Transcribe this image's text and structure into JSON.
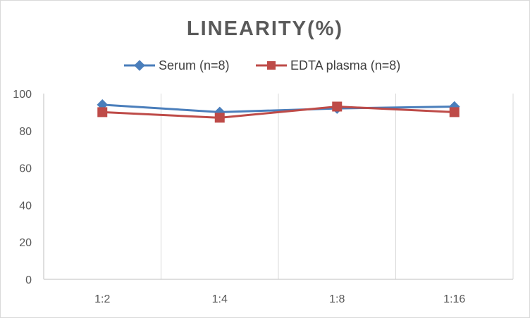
{
  "chart_data": {
    "type": "line",
    "title": "LINEARITY(%)",
    "xlabel": "",
    "ylabel": "",
    "categories": [
      "1:2",
      "1:4",
      "1:8",
      "1:16"
    ],
    "ylim": [
      0,
      100
    ],
    "yticks": [
      0,
      20,
      40,
      60,
      80,
      100
    ],
    "grid": "vertical",
    "legend_position": "top",
    "series": [
      {
        "name": "Serum (n=8)",
        "marker": "diamond",
        "color": "#4a7ebb",
        "values": [
          94,
          90,
          92,
          93
        ]
      },
      {
        "name": "EDTA plasma (n=8)",
        "marker": "square",
        "color": "#be4b48",
        "values": [
          90,
          87,
          93,
          90
        ]
      }
    ]
  }
}
